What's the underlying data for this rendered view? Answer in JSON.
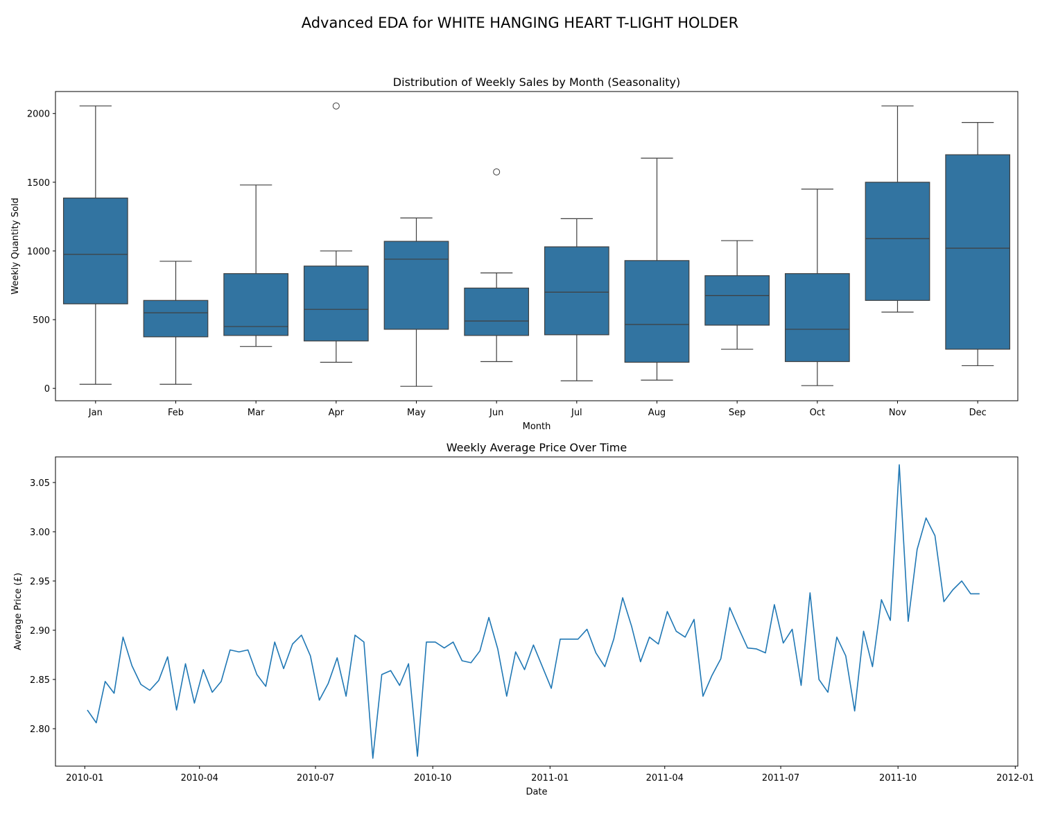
{
  "figure": {
    "suptitle": "Advanced EDA for WHITE HANGING HEART T-LIGHT HOLDER",
    "box_color": "#3274a1",
    "line_color": "#1f77b4"
  },
  "chart_data": [
    {
      "type": "box",
      "title": "Distribution of Weekly Sales by Month (Seasonality)",
      "xlabel": "Month",
      "ylabel": "Weekly Quantity Sold",
      "ylim": [
        -90,
        2160
      ],
      "yticks": [
        0,
        500,
        1000,
        1500,
        2000
      ],
      "grid": false,
      "categories": [
        "Jan",
        "Feb",
        "Mar",
        "Apr",
        "May",
        "Jun",
        "Jul",
        "Aug",
        "Sep",
        "Oct",
        "Nov",
        "Dec"
      ],
      "boxes": [
        {
          "whislo": 30,
          "q1": 615,
          "med": 975,
          "q3": 1385,
          "whishi": 2055,
          "fliers": []
        },
        {
          "whislo": 30,
          "q1": 375,
          "med": 550,
          "q3": 640,
          "whishi": 925,
          "fliers": []
        },
        {
          "whislo": 305,
          "q1": 385,
          "med": 450,
          "q3": 835,
          "whishi": 1480,
          "fliers": []
        },
        {
          "whislo": 190,
          "q1": 345,
          "med": 575,
          "q3": 890,
          "whishi": 1000,
          "fliers": [
            2055
          ]
        },
        {
          "whislo": 15,
          "q1": 430,
          "med": 940,
          "q3": 1070,
          "whishi": 1240,
          "fliers": []
        },
        {
          "whislo": 195,
          "q1": 385,
          "med": 490,
          "q3": 730,
          "whishi": 840,
          "fliers": [
            1575
          ]
        },
        {
          "whislo": 55,
          "q1": 390,
          "med": 700,
          "q3": 1030,
          "whishi": 1235,
          "fliers": []
        },
        {
          "whislo": 60,
          "q1": 190,
          "med": 465,
          "q3": 930,
          "whishi": 1675,
          "fliers": []
        },
        {
          "whislo": 285,
          "q1": 460,
          "med": 675,
          "q3": 820,
          "whishi": 1075,
          "fliers": []
        },
        {
          "whislo": 20,
          "q1": 195,
          "med": 430,
          "q3": 835,
          "whishi": 1450,
          "fliers": []
        },
        {
          "whislo": 555,
          "q1": 640,
          "med": 1090,
          "q3": 1500,
          "whishi": 2055,
          "fliers": []
        },
        {
          "whislo": 165,
          "q1": 285,
          "med": 1020,
          "q3": 1700,
          "whishi": 1935,
          "fliers": []
        }
      ]
    },
    {
      "type": "line",
      "title": "Weekly Average Price Over Time",
      "xlabel": "Date",
      "ylabel": "Average Price (£)",
      "xlim": [
        "2009-12-09",
        "2012-01-03"
      ],
      "ylim": [
        2.762,
        3.076
      ],
      "xticks": [
        "2010-01",
        "2010-04",
        "2010-07",
        "2010-10",
        "2011-01",
        "2011-04",
        "2011-07",
        "2011-10",
        "2012-01"
      ],
      "yticks": [
        "2.80",
        "2.85",
        "2.90",
        "2.95",
        "3.00",
        "3.05"
      ],
      "grid": false,
      "series": [
        {
          "x": [
            "2010-01-03",
            "2010-01-10",
            "2010-01-17",
            "2010-01-24",
            "2010-01-31",
            "2010-02-07",
            "2010-02-14",
            "2010-02-21",
            "2010-02-28",
            "2010-03-07",
            "2010-03-14",
            "2010-03-21",
            "2010-03-28",
            "2010-04-04",
            "2010-04-11",
            "2010-04-18",
            "2010-04-25",
            "2010-05-02",
            "2010-05-09",
            "2010-05-16",
            "2010-05-23",
            "2010-05-30",
            "2010-06-06",
            "2010-06-13",
            "2010-06-20",
            "2010-06-27",
            "2010-07-04",
            "2010-07-11",
            "2010-07-18",
            "2010-07-25",
            "2010-08-01",
            "2010-08-08",
            "2010-08-15",
            "2010-08-22",
            "2010-08-29",
            "2010-09-05",
            "2010-09-12",
            "2010-09-19",
            "2010-09-26",
            "2010-10-03",
            "2010-10-10",
            "2010-10-17",
            "2010-10-24",
            "2010-10-31",
            "2010-11-07",
            "2010-11-14",
            "2010-11-21",
            "2010-11-28",
            "2010-12-05",
            "2010-12-12",
            "2010-12-19",
            "2011-01-02",
            "2011-01-09",
            "2011-01-16",
            "2011-01-23",
            "2011-01-30",
            "2011-02-06",
            "2011-02-13",
            "2011-02-20",
            "2011-02-27",
            "2011-03-06",
            "2011-03-13",
            "2011-03-20",
            "2011-03-27",
            "2011-04-03",
            "2011-04-10",
            "2011-04-17",
            "2011-04-24",
            "2011-05-01",
            "2011-05-08",
            "2011-05-15",
            "2011-05-22",
            "2011-05-29",
            "2011-06-05",
            "2011-06-12",
            "2011-06-19",
            "2011-06-26",
            "2011-07-03",
            "2011-07-10",
            "2011-07-17",
            "2011-07-24",
            "2011-07-31",
            "2011-08-07",
            "2011-08-14",
            "2011-08-21",
            "2011-08-28",
            "2011-09-04",
            "2011-09-11",
            "2011-09-18",
            "2011-09-25",
            "2011-10-02",
            "2011-10-09",
            "2011-10-16",
            "2011-10-23",
            "2011-10-30",
            "2011-11-06",
            "2011-11-13",
            "2011-11-20",
            "2011-11-27",
            "2011-12-04"
          ],
          "y": [
            2.819,
            2.806,
            2.848,
            2.836,
            2.893,
            2.864,
            2.845,
            2.839,
            2.849,
            2.873,
            2.819,
            2.866,
            2.826,
            2.86,
            2.837,
            2.848,
            2.88,
            2.878,
            2.88,
            2.855,
            2.843,
            2.888,
            2.861,
            2.886,
            2.895,
            2.874,
            2.829,
            2.846,
            2.872,
            2.833,
            2.895,
            2.888,
            2.77,
            2.855,
            2.859,
            2.844,
            2.866,
            2.772,
            2.888,
            2.888,
            2.882,
            2.888,
            2.869,
            2.867,
            2.879,
            2.913,
            2.881,
            2.833,
            2.878,
            2.86,
            2.885,
            2.841,
            2.891,
            2.891,
            2.891,
            2.901,
            2.877,
            2.863,
            2.891,
            2.933,
            2.904,
            2.868,
            2.893,
            2.886,
            2.919,
            2.899,
            2.893,
            2.911,
            2.833,
            2.854,
            2.871,
            2.923,
            2.902,
            2.882,
            2.881,
            2.877,
            2.926,
            2.887,
            2.901,
            2.844,
            2.938,
            2.85,
            2.837,
            2.893,
            2.874,
            2.818,
            2.899,
            2.863,
            2.931,
            2.91,
            3.068,
            2.909,
            2.982,
            3.014,
            2.996,
            2.929,
            2.941,
            2.95,
            2.937,
            2.937
          ]
        }
      ]
    }
  ]
}
